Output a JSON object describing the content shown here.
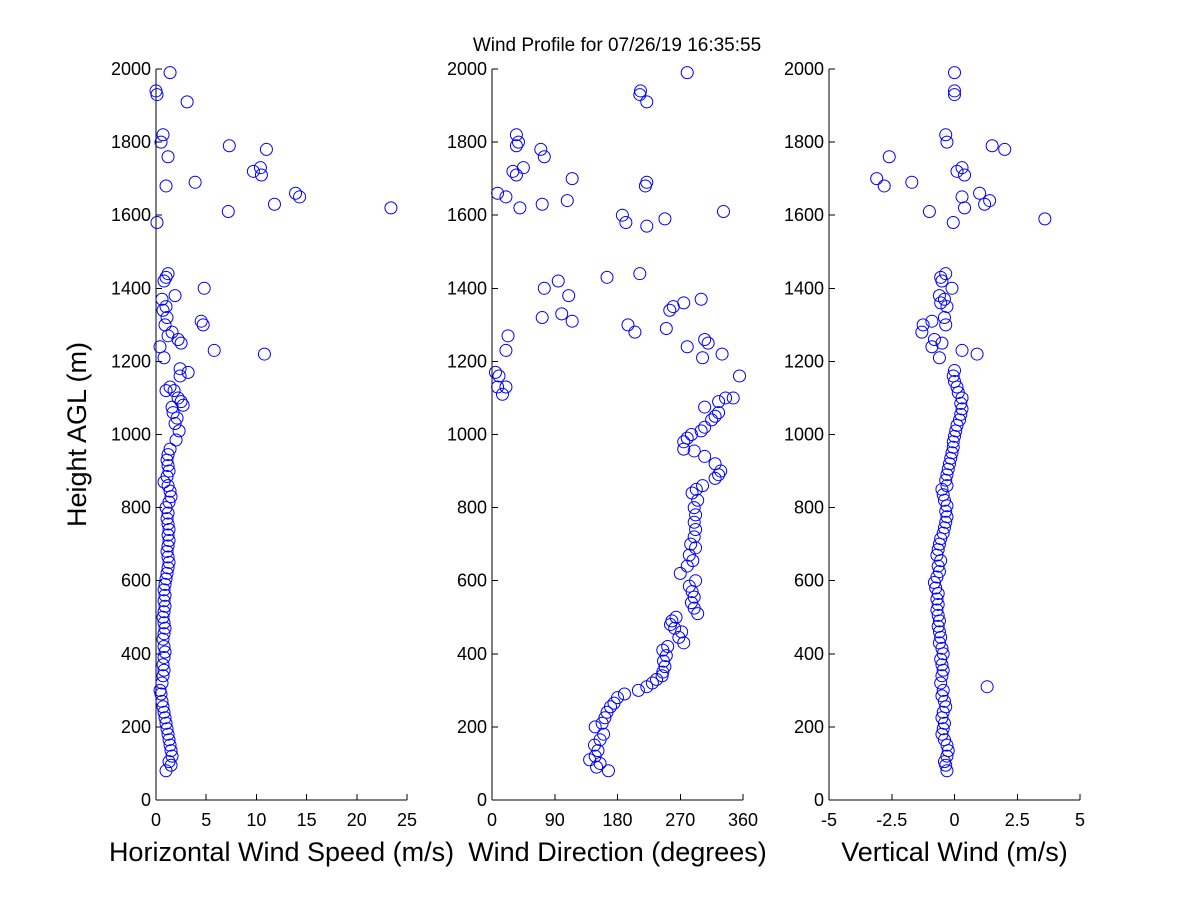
{
  "title": "Wind Profile for  07/26/19 16:35:55",
  "marker_color": "#0000ff",
  "chart_data": [
    {
      "type": "scatter",
      "xlabel": "Horizontal Wind Speed (m/s)",
      "ylabel": "Height AGL (m)",
      "xlim": [
        0,
        25
      ],
      "ylim": [
        0,
        2000
      ],
      "xticks": [
        "0",
        "5",
        "10",
        "15",
        "20",
        "25"
      ],
      "yticks": [
        "0",
        "200",
        "400",
        "600",
        "800",
        "1000",
        "1200",
        "1400",
        "1600",
        "1800",
        "2000"
      ],
      "grid": false,
      "points": [
        [
          1.0,
          80
        ],
        [
          1.5,
          95
        ],
        [
          1.3,
          105
        ],
        [
          1.6,
          120
        ],
        [
          1.5,
          135
        ],
        [
          1.4,
          150
        ],
        [
          1.3,
          165
        ],
        [
          1.2,
          180
        ],
        [
          1.1,
          195
        ],
        [
          1.0,
          210
        ],
        [
          0.9,
          225
        ],
        [
          0.8,
          240
        ],
        [
          0.7,
          255
        ],
        [
          0.6,
          270
        ],
        [
          0.5,
          290
        ],
        [
          0.4,
          300
        ],
        [
          0.6,
          320
        ],
        [
          0.7,
          340
        ],
        [
          0.8,
          355
        ],
        [
          0.7,
          370
        ],
        [
          0.8,
          390
        ],
        [
          0.9,
          405
        ],
        [
          0.8,
          420
        ],
        [
          0.7,
          440
        ],
        [
          0.8,
          455
        ],
        [
          0.9,
          470
        ],
        [
          0.8,
          485
        ],
        [
          0.7,
          500
        ],
        [
          0.8,
          515
        ],
        [
          0.9,
          530
        ],
        [
          0.8,
          545
        ],
        [
          0.9,
          560
        ],
        [
          0.8,
          575
        ],
        [
          0.9,
          590
        ],
        [
          1.0,
          605
        ],
        [
          1.1,
          620
        ],
        [
          1.2,
          635
        ],
        [
          1.3,
          650
        ],
        [
          1.2,
          665
        ],
        [
          1.1,
          680
        ],
        [
          1.2,
          695
        ],
        [
          1.3,
          710
        ],
        [
          1.2,
          725
        ],
        [
          1.3,
          740
        ],
        [
          1.2,
          755
        ],
        [
          1.1,
          770
        ],
        [
          1.2,
          785
        ],
        [
          1.0,
          800
        ],
        [
          1.3,
          815
        ],
        [
          1.5,
          830
        ],
        [
          1.4,
          845
        ],
        [
          1.2,
          860
        ],
        [
          0.8,
          870
        ],
        [
          1.1,
          885
        ],
        [
          1.3,
          900
        ],
        [
          1.2,
          915
        ],
        [
          1.1,
          930
        ],
        [
          1.2,
          945
        ],
        [
          1.4,
          960
        ],
        [
          2.0,
          985
        ],
        [
          2.3,
          1010
        ],
        [
          1.9,
          1030
        ],
        [
          2.1,
          1045
        ],
        [
          1.7,
          1060
        ],
        [
          1.6,
          1075
        ],
        [
          2.7,
          1080
        ],
        [
          2.5,
          1090
        ],
        [
          2.2,
          1100
        ],
        [
          1.8,
          1120
        ],
        [
          1.4,
          1130
        ],
        [
          1.0,
          1120
        ],
        [
          2.4,
          1160
        ],
        [
          2.4,
          1180
        ],
        [
          3.2,
          1170
        ],
        [
          0.8,
          1210
        ],
        [
          0.4,
          1240
        ],
        [
          2.5,
          1250
        ],
        [
          2.2,
          1260
        ],
        [
          1.6,
          1280
        ],
        [
          1.2,
          1270
        ],
        [
          0.9,
          1300
        ],
        [
          1.1,
          1320
        ],
        [
          0.7,
          1340
        ],
        [
          1.0,
          1350
        ],
        [
          0.6,
          1370
        ],
        [
          1.9,
          1380
        ],
        [
          0.8,
          1420
        ],
        [
          1.2,
          1440
        ],
        [
          1.0,
          1430
        ],
        [
          4.8,
          1400
        ],
        [
          4.5,
          1310
        ],
        [
          4.7,
          1300
        ],
        [
          5.8,
          1230
        ],
        [
          10.8,
          1220
        ],
        [
          0.1,
          1580
        ],
        [
          23.4,
          1620
        ],
        [
          7.2,
          1610
        ],
        [
          11.8,
          1630
        ],
        [
          14.3,
          1650
        ],
        [
          13.9,
          1660
        ],
        [
          10.5,
          1710
        ],
        [
          10.4,
          1730
        ],
        [
          9.7,
          1720
        ],
        [
          11.0,
          1780
        ],
        [
          7.3,
          1790
        ],
        [
          3.9,
          1690
        ],
        [
          1.0,
          1680
        ],
        [
          1.2,
          1760
        ],
        [
          0.5,
          1800
        ],
        [
          0.7,
          1820
        ],
        [
          0.0,
          1940
        ],
        [
          0.1,
          1930
        ],
        [
          3.1,
          1910
        ],
        [
          1.4,
          1990
        ]
      ]
    },
    {
      "type": "scatter",
      "xlabel": "Wind Direction (degrees)",
      "ylabel": "",
      "xlim": [
        0,
        360
      ],
      "ylim": [
        0,
        2000
      ],
      "xticks": [
        "0",
        "90",
        "180",
        "270",
        "360"
      ],
      "yticks": [
        "0",
        "200",
        "400",
        "600",
        "800",
        "1000",
        "1200",
        "1400",
        "1600",
        "1800",
        "2000"
      ],
      "grid": false,
      "points": [
        [
          167,
          80
        ],
        [
          150,
          90
        ],
        [
          140,
          110
        ],
        [
          155,
          100
        ],
        [
          148,
          120
        ],
        [
          152,
          135
        ],
        [
          147,
          150
        ],
        [
          155,
          165
        ],
        [
          160,
          180
        ],
        [
          148,
          200
        ],
        [
          158,
          210
        ],
        [
          162,
          225
        ],
        [
          165,
          240
        ],
        [
          170,
          255
        ],
        [
          175,
          265
        ],
        [
          180,
          280
        ],
        [
          190,
          290
        ],
        [
          210,
          300
        ],
        [
          222,
          310
        ],
        [
          230,
          320
        ],
        [
          236,
          330
        ],
        [
          244,
          340
        ],
        [
          245,
          350
        ],
        [
          248,
          365
        ],
        [
          246,
          380
        ],
        [
          250,
          395
        ],
        [
          245,
          410
        ],
        [
          252,
          420
        ],
        [
          275,
          430
        ],
        [
          268,
          445
        ],
        [
          272,
          460
        ],
        [
          262,
          470
        ],
        [
          256,
          480
        ],
        [
          258,
          490
        ],
        [
          264,
          500
        ],
        [
          295,
          510
        ],
        [
          290,
          525
        ],
        [
          286,
          540
        ],
        [
          290,
          555
        ],
        [
          287,
          570
        ],
        [
          283,
          585
        ],
        [
          292,
          600
        ],
        [
          270,
          620
        ],
        [
          280,
          640
        ],
        [
          288,
          655
        ],
        [
          283,
          670
        ],
        [
          292,
          690
        ],
        [
          285,
          700
        ],
        [
          290,
          720
        ],
        [
          292,
          740
        ],
        [
          290,
          760
        ],
        [
          292,
          780
        ],
        [
          290,
          800
        ],
        [
          295,
          820
        ],
        [
          287,
          840
        ],
        [
          293,
          850
        ],
        [
          302,
          860
        ],
        [
          320,
          880
        ],
        [
          325,
          890
        ],
        [
          328,
          900
        ],
        [
          320,
          920
        ],
        [
          305,
          940
        ],
        [
          290,
          955
        ],
        [
          275,
          960
        ],
        [
          275,
          980
        ],
        [
          280,
          990
        ],
        [
          286,
          1000
        ],
        [
          300,
          1010
        ],
        [
          305,
          1020
        ],
        [
          315,
          1040
        ],
        [
          320,
          1050
        ],
        [
          325,
          1060
        ],
        [
          305,
          1075
        ],
        [
          325,
          1090
        ],
        [
          335,
          1100
        ],
        [
          346,
          1100
        ],
        [
          355,
          1160
        ],
        [
          10,
          1160
        ],
        [
          5,
          1170
        ],
        [
          8,
          1130
        ],
        [
          20,
          1130
        ],
        [
          15,
          1110
        ],
        [
          302,
          1210
        ],
        [
          310,
          1250
        ],
        [
          330,
          1220
        ],
        [
          305,
          1260
        ],
        [
          280,
          1240
        ],
        [
          250,
          1290
        ],
        [
          255,
          1340
        ],
        [
          260,
          1350
        ],
        [
          275,
          1360
        ],
        [
          300,
          1370
        ],
        [
          20,
          1230
        ],
        [
          23,
          1270
        ],
        [
          115,
          1310
        ],
        [
          100,
          1330
        ],
        [
          195,
          1300
        ],
        [
          205,
          1280
        ],
        [
          72,
          1320
        ],
        [
          75,
          1400
        ],
        [
          95,
          1420
        ],
        [
          110,
          1380
        ],
        [
          165,
          1430
        ],
        [
          212,
          1440
        ],
        [
          8,
          1660
        ],
        [
          20,
          1650
        ],
        [
          40,
          1620
        ],
        [
          72,
          1630
        ],
        [
          108,
          1640
        ],
        [
          115,
          1700
        ],
        [
          187,
          1600
        ],
        [
          192,
          1580
        ],
        [
          222,
          1570
        ],
        [
          248,
          1590
        ],
        [
          332,
          1610
        ],
        [
          220,
          1680
        ],
        [
          222,
          1690
        ],
        [
          35,
          1710
        ],
        [
          45,
          1730
        ],
        [
          30,
          1720
        ],
        [
          75,
          1760
        ],
        [
          70,
          1780
        ],
        [
          35,
          1790
        ],
        [
          38,
          1800
        ],
        [
          35,
          1820
        ],
        [
          212,
          1930
        ],
        [
          213,
          1940
        ],
        [
          222,
          1910
        ],
        [
          280,
          1990
        ]
      ]
    },
    {
      "type": "scatter",
      "xlabel": "Vertical Wind (m/s)",
      "ylabel": "",
      "xlim": [
        -5,
        5
      ],
      "ylim": [
        0,
        2000
      ],
      "xticks": [
        "-5",
        "-2.5",
        "0",
        "2.5",
        "5"
      ],
      "yticks": [
        "0",
        "200",
        "400",
        "600",
        "800",
        "1000",
        "1200",
        "1400",
        "1600",
        "1800",
        "2000"
      ],
      "grid": false,
      "points": [
        [
          -0.3,
          80
        ],
        [
          -0.35,
          95
        ],
        [
          -0.4,
          105
        ],
        [
          -0.3,
          120
        ],
        [
          -0.25,
          135
        ],
        [
          -0.3,
          150
        ],
        [
          -0.4,
          165
        ],
        [
          -0.5,
          180
        ],
        [
          -0.45,
          195
        ],
        [
          -0.4,
          210
        ],
        [
          -0.5,
          225
        ],
        [
          -0.45,
          240
        ],
        [
          -0.35,
          255
        ],
        [
          -0.4,
          270
        ],
        [
          -0.5,
          285
        ],
        [
          -0.45,
          300
        ],
        [
          1.3,
          310
        ],
        [
          -0.55,
          320
        ],
        [
          -0.5,
          340
        ],
        [
          -0.45,
          355
        ],
        [
          -0.5,
          370
        ],
        [
          -0.55,
          385
        ],
        [
          -0.45,
          400
        ],
        [
          -0.5,
          415
        ],
        [
          -0.6,
          430
        ],
        [
          -0.55,
          445
        ],
        [
          -0.6,
          460
        ],
        [
          -0.65,
          475
        ],
        [
          -0.6,
          490
        ],
        [
          -0.65,
          505
        ],
        [
          -0.7,
          520
        ],
        [
          -0.65,
          535
        ],
        [
          -0.7,
          550
        ],
        [
          -0.65,
          565
        ],
        [
          -0.75,
          580
        ],
        [
          -0.8,
          595
        ],
        [
          -0.7,
          610
        ],
        [
          -0.6,
          625
        ],
        [
          -0.65,
          640
        ],
        [
          -0.55,
          655
        ],
        [
          -0.7,
          670
        ],
        [
          -0.65,
          685
        ],
        [
          -0.6,
          700
        ],
        [
          -0.55,
          715
        ],
        [
          -0.45,
          730
        ],
        [
          -0.4,
          745
        ],
        [
          -0.35,
          760
        ],
        [
          -0.3,
          775
        ],
        [
          -0.35,
          790
        ],
        [
          -0.3,
          805
        ],
        [
          -0.4,
          820
        ],
        [
          -0.45,
          835
        ],
        [
          -0.5,
          850
        ],
        [
          -0.3,
          860
        ],
        [
          -0.35,
          875
        ],
        [
          -0.3,
          890
        ],
        [
          -0.25,
          905
        ],
        [
          -0.2,
          920
        ],
        [
          -0.15,
          935
        ],
        [
          -0.1,
          950
        ],
        [
          -0.05,
          965
        ],
        [
          -0.05,
          980
        ],
        [
          0.0,
          995
        ],
        [
          0.05,
          1010
        ],
        [
          0.1,
          1025
        ],
        [
          0.2,
          1040
        ],
        [
          0.25,
          1055
        ],
        [
          0.3,
          1070
        ],
        [
          0.25,
          1085
        ],
        [
          0.3,
          1100
        ],
        [
          0.15,
          1115
        ],
        [
          0.1,
          1130
        ],
        [
          0.0,
          1145
        ],
        [
          -0.05,
          1160
        ],
        [
          0.0,
          1175
        ],
        [
          -0.6,
          1210
        ],
        [
          0.3,
          1230
        ],
        [
          0.9,
          1220
        ],
        [
          -0.9,
          1240
        ],
        [
          -0.5,
          1250
        ],
        [
          -1.3,
          1280
        ],
        [
          -1.25,
          1300
        ],
        [
          -0.8,
          1260
        ],
        [
          -0.9,
          1310
        ],
        [
          -0.35,
          1300
        ],
        [
          -0.4,
          1320
        ],
        [
          -0.3,
          1350
        ],
        [
          -0.55,
          1360
        ],
        [
          -0.4,
          1370
        ],
        [
          -0.6,
          1380
        ],
        [
          -0.1,
          1400
        ],
        [
          -0.55,
          1430
        ],
        [
          -0.35,
          1440
        ],
        [
          -0.5,
          1420
        ],
        [
          -0.05,
          1580
        ],
        [
          3.6,
          1590
        ],
        [
          -1.0,
          1610
        ],
        [
          0.4,
          1620
        ],
        [
          1.2,
          1630
        ],
        [
          1.4,
          1640
        ],
        [
          1.0,
          1660
        ],
        [
          0.3,
          1650
        ],
        [
          -3.1,
          1700
        ],
        [
          -2.8,
          1680
        ],
        [
          -1.7,
          1690
        ],
        [
          0.1,
          1720
        ],
        [
          0.4,
          1710
        ],
        [
          0.3,
          1730
        ],
        [
          -2.6,
          1760
        ],
        [
          1.5,
          1790
        ],
        [
          2.0,
          1780
        ],
        [
          -0.3,
          1800
        ],
        [
          -0.35,
          1820
        ],
        [
          0.0,
          1930
        ],
        [
          0.0,
          1940
        ],
        [
          0.0,
          1990
        ]
      ]
    }
  ]
}
